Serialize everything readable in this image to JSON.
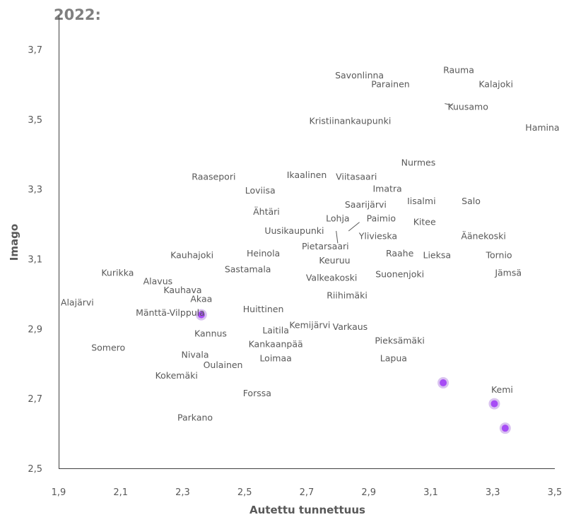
{
  "chart_data": {
    "type": "scatter",
    "title": "2022:",
    "xlabel": "Autettu tunnettuus",
    "ylabel": "Imago",
    "xlim": [
      1.9,
      3.5
    ],
    "ylim": [
      2.5,
      3.7
    ],
    "xticks": [
      "1,9",
      "2,1",
      "2,3",
      "2,5",
      "2,7",
      "2,9",
      "3,1",
      "3,3",
      "3,5"
    ],
    "yticks": [
      "2,5",
      "2,7",
      "2,9",
      "3,1",
      "3,3",
      "3,5",
      "3,7"
    ],
    "grid": false,
    "highlight_color": "#a64cf5",
    "markers": [
      {
        "x": 2.36,
        "y": 2.94
      },
      {
        "x": 3.14,
        "y": 2.745
      },
      {
        "x": 3.305,
        "y": 2.685
      },
      {
        "x": 3.34,
        "y": 2.615
      }
    ],
    "labels": [
      {
        "text": "Rauma",
        "x": 3.19,
        "y": 3.64
      },
      {
        "text": "Savonlinna",
        "x": 2.87,
        "y": 3.625
      },
      {
        "text": "Parainen",
        "x": 2.97,
        "y": 3.6
      },
      {
        "text": "Kalajoki",
        "x": 3.31,
        "y": 3.6
      },
      {
        "text": "Kuusamo",
        "x": 3.22,
        "y": 3.535
      },
      {
        "text": "Kristiinankaupunki",
        "x": 2.84,
        "y": 3.495
      },
      {
        "text": "Hamina",
        "x": 3.46,
        "y": 3.475
      },
      {
        "text": "Nurmes",
        "x": 3.06,
        "y": 3.375
      },
      {
        "text": "Raasepori",
        "x": 2.4,
        "y": 3.335
      },
      {
        "text": "Ikaalinen",
        "x": 2.7,
        "y": 3.34
      },
      {
        "text": "Viitasaari",
        "x": 2.86,
        "y": 3.335
      },
      {
        "text": "Imatra",
        "x": 2.96,
        "y": 3.3
      },
      {
        "text": "Loviisa",
        "x": 2.55,
        "y": 3.295
      },
      {
        "text": "Iisalmi",
        "x": 3.07,
        "y": 3.265
      },
      {
        "text": "Salo",
        "x": 3.23,
        "y": 3.265
      },
      {
        "text": "Saarijärvi",
        "x": 2.89,
        "y": 3.255
      },
      {
        "text": "Ähtäri",
        "x": 2.57,
        "y": 3.235
      },
      {
        "text": "Lohja",
        "x": 2.8,
        "y": 3.215
      },
      {
        "text": "Paimio",
        "x": 2.94,
        "y": 3.215
      },
      {
        "text": "Kitee",
        "x": 3.08,
        "y": 3.205
      },
      {
        "text": "Uusikaupunki",
        "x": 2.66,
        "y": 3.18
      },
      {
        "text": "Ylivieska",
        "x": 2.93,
        "y": 3.165
      },
      {
        "text": "Äänekoski",
        "x": 3.27,
        "y": 3.165
      },
      {
        "text": "Pietarsaari",
        "x": 2.76,
        "y": 3.135
      },
      {
        "text": "Heinola",
        "x": 2.56,
        "y": 3.115
      },
      {
        "text": "Raahe",
        "x": 3.0,
        "y": 3.115
      },
      {
        "text": "Kauhajoki",
        "x": 2.33,
        "y": 3.11
      },
      {
        "text": "Lieksa",
        "x": 3.12,
        "y": 3.11
      },
      {
        "text": "Tornio",
        "x": 3.32,
        "y": 3.11
      },
      {
        "text": "Keuruu",
        "x": 2.79,
        "y": 3.095
      },
      {
        "text": "Sastamala",
        "x": 2.51,
        "y": 3.07
      },
      {
        "text": "Kurikka",
        "x": 2.09,
        "y": 3.06
      },
      {
        "text": "Suonenjoki",
        "x": 3.0,
        "y": 3.055
      },
      {
        "text": "Jämsä",
        "x": 3.35,
        "y": 3.06
      },
      {
        "text": "Alavus",
        "x": 2.22,
        "y": 3.035
      },
      {
        "text": "Valkeakoski",
        "x": 2.78,
        "y": 3.045
      },
      {
        "text": "Kauhava",
        "x": 2.3,
        "y": 3.01
      },
      {
        "text": "Akaa",
        "x": 2.36,
        "y": 2.985
      },
      {
        "text": "Riihimäki",
        "x": 2.83,
        "y": 2.995
      },
      {
        "text": "Alajärvi",
        "x": 1.96,
        "y": 2.975
      },
      {
        "text": "Huittinen",
        "x": 2.56,
        "y": 2.955
      },
      {
        "text": "Mänttä-Vilppula",
        "x": 2.26,
        "y": 2.945
      },
      {
        "text": "Kemijärvi",
        "x": 2.71,
        "y": 2.91
      },
      {
        "text": "Varkaus",
        "x": 2.84,
        "y": 2.905
      },
      {
        "text": "Laitila",
        "x": 2.6,
        "y": 2.895
      },
      {
        "text": "Kannus",
        "x": 2.39,
        "y": 2.885
      },
      {
        "text": "Pieksämäki",
        "x": 3.0,
        "y": 2.865
      },
      {
        "text": "Kankaanpää",
        "x": 2.6,
        "y": 2.855
      },
      {
        "text": "Somero",
        "x": 2.06,
        "y": 2.845
      },
      {
        "text": "Nivala",
        "x": 2.34,
        "y": 2.825
      },
      {
        "text": "Loimaa",
        "x": 2.6,
        "y": 2.815
      },
      {
        "text": "Lapua",
        "x": 2.98,
        "y": 2.815
      },
      {
        "text": "Oulainen",
        "x": 2.43,
        "y": 2.795
      },
      {
        "text": "Kokemäki",
        "x": 2.28,
        "y": 2.765
      },
      {
        "text": "Kemi",
        "x": 3.33,
        "y": 2.725
      },
      {
        "text": "Forssa",
        "x": 2.54,
        "y": 2.715
      },
      {
        "text": "Parkano",
        "x": 2.34,
        "y": 2.645
      }
    ],
    "leader_lines": [
      {
        "from": [
          3.145,
          3.545
        ],
        "to": [
          3.17,
          3.54
        ]
      },
      {
        "from": [
          2.835,
          3.18
        ],
        "to": [
          2.87,
          3.205
        ]
      },
      {
        "from": [
          2.795,
          3.18
        ],
        "to": [
          2.8,
          3.145
        ]
      }
    ]
  }
}
